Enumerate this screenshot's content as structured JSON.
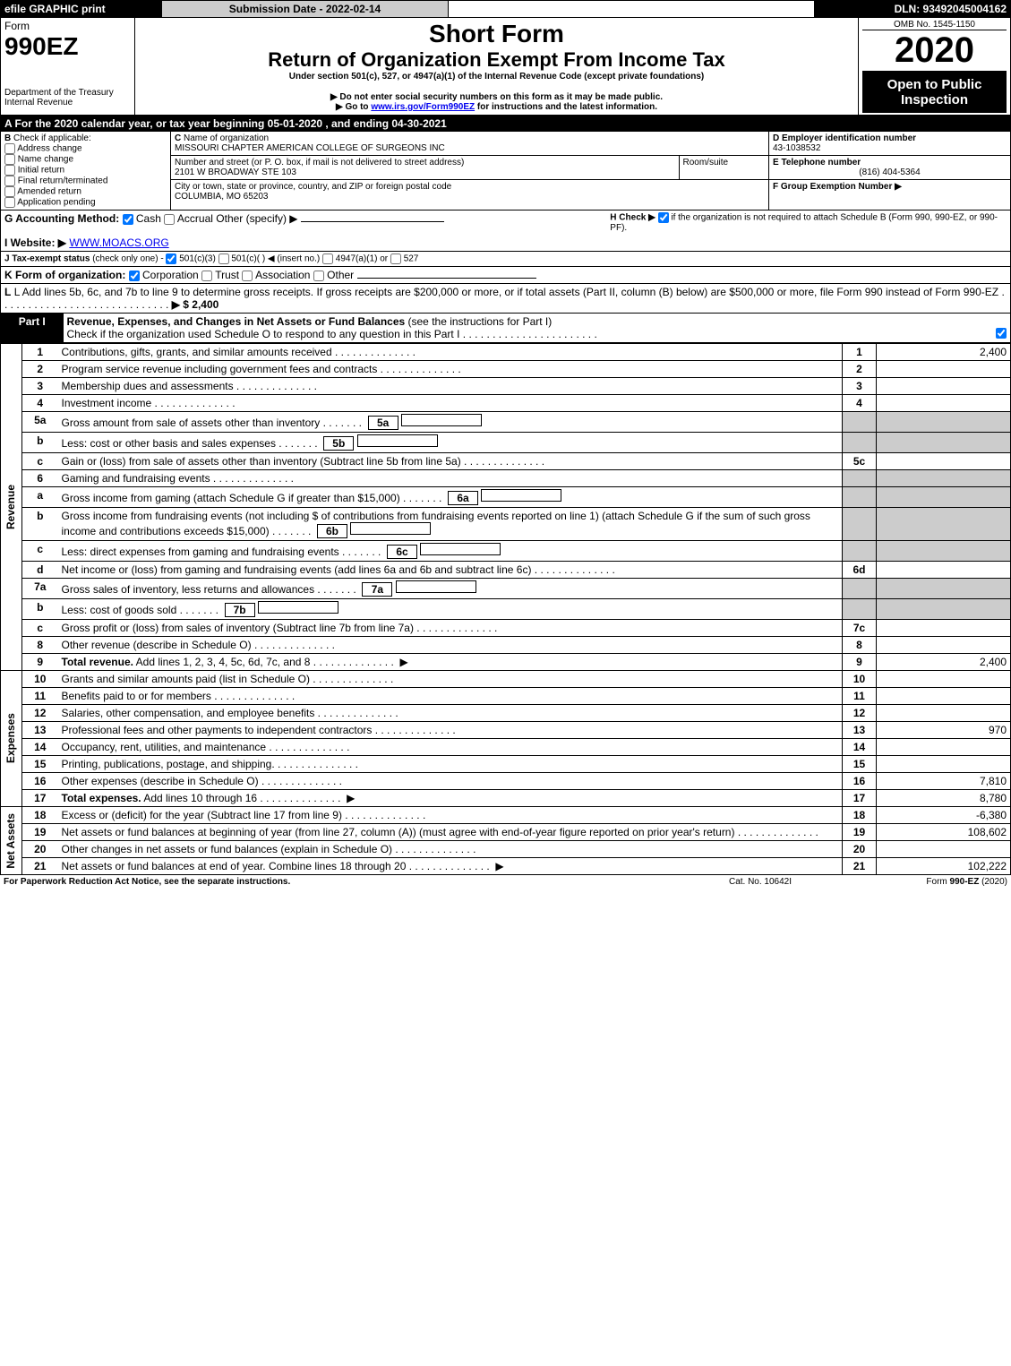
{
  "topbar": {
    "efile": "efile GRAPHIC print",
    "submission_label": "Submission Date - 2022-02-14",
    "dln": "DLN: 93492045004162"
  },
  "header": {
    "form_word": "Form",
    "form_number": "990EZ",
    "dept": "Department of the Treasury",
    "irs": "Internal Revenue",
    "short_form": "Short Form",
    "title": "Return of Organization Exempt From Income Tax",
    "subtitle": "Under section 501(c), 527, or 4947(a)(1) of the Internal Revenue Code (except private foundations)",
    "warn1": "▶ Do not enter social security numbers on this form as it may be made public.",
    "warn2_pre": "▶ Go to ",
    "warn2_link": "www.irs.gov/Form990EZ",
    "warn2_post": " for instructions and the latest information.",
    "omb": "OMB No. 1545-1150",
    "year": "2020",
    "open": "Open to Public Inspection"
  },
  "line_a": "A   For the 2020 calendar year, or tax year beginning 05-01-2020 , and ending 04-30-2021",
  "section_b": {
    "label": "B",
    "check_if": "Check if applicable:",
    "opts": [
      "Address change",
      "Name change",
      "Initial return",
      "Final return/terminated",
      "Amended return",
      "Application pending"
    ]
  },
  "section_c": {
    "c_label": "C",
    "name_label": "Name of organization",
    "name": "MISSOURI CHAPTER AMERICAN COLLEGE OF SURGEONS INC",
    "street_label": "Number and street (or P. O. box, if mail is not delivered to street address)",
    "room_label": "Room/suite",
    "street": "2101 W BROADWAY STE 103",
    "city_label": "City or town, state or province, country, and ZIP or foreign postal code",
    "city": "COLUMBIA, MO  65203"
  },
  "section_d": {
    "d_label": "D Employer identification number",
    "ein": "43-1038532",
    "e_label": "E Telephone number",
    "phone": "(816) 404-5364",
    "f_label": "F Group Exemption Number  ▶"
  },
  "line_g": {
    "label": "G Accounting Method:",
    "cash": "Cash",
    "accrual": "Accrual",
    "other": "Other (specify) ▶"
  },
  "line_h": {
    "pre": "H  Check ▶",
    "post": "if the organization is not required to attach Schedule B (Form 990, 990-EZ, or 990-PF)."
  },
  "line_i": {
    "label": "I Website: ▶",
    "url": "WWW.MOACS.ORG"
  },
  "line_j": {
    "pre": "J Tax-exempt status",
    "sub": "(check only one) -",
    "opt1": "501(c)(3)",
    "opt2": "501(c)(  ) ◀ (insert no.)",
    "opt3": "4947(a)(1) or",
    "opt4": "527"
  },
  "line_k": {
    "label": "K Form of organization:",
    "opts": [
      "Corporation",
      "Trust",
      "Association",
      "Other"
    ]
  },
  "line_l": {
    "text": "L Add lines 5b, 6c, and 7b to line 9 to determine gross receipts. If gross receipts are $200,000 or more, or if total assets (Part II, column (B) below) are $500,000 or more, file Form 990 instead of Form 990-EZ",
    "arrow": "▶ $ 2,400"
  },
  "part1": {
    "label": "Part I",
    "title": "Revenue, Expenses, and Changes in Net Assets or Fund Balances",
    "title_note": "(see the instructions for Part I)",
    "check_line": "Check if the organization used Schedule O to respond to any question in this Part I"
  },
  "sections": {
    "revenue": "Revenue",
    "expenses": "Expenses",
    "netassets": "Net Assets"
  },
  "rows": [
    {
      "n": "1",
      "t": "Contributions, gifts, grants, and similar amounts received",
      "rn": "1",
      "v": "2,400"
    },
    {
      "n": "2",
      "t": "Program service revenue including government fees and contracts",
      "rn": "2",
      "v": ""
    },
    {
      "n": "3",
      "t": "Membership dues and assessments",
      "rn": "3",
      "v": ""
    },
    {
      "n": "4",
      "t": "Investment income",
      "rn": "4",
      "v": ""
    },
    {
      "n": "5a",
      "t": "Gross amount from sale of assets other than inventory",
      "mid": "5a",
      "rn": "",
      "v": "",
      "shade": true
    },
    {
      "n": "b",
      "t": "Less: cost or other basis and sales expenses",
      "mid": "5b",
      "rn": "",
      "v": "",
      "shade": true
    },
    {
      "n": "c",
      "t": "Gain or (loss) from sale of assets other than inventory (Subtract line 5b from line 5a)",
      "rn": "5c",
      "v": ""
    },
    {
      "n": "6",
      "t": "Gaming and fundraising events",
      "rn": "",
      "v": "",
      "shade": true
    },
    {
      "n": "a",
      "t": "Gross income from gaming (attach Schedule G if greater than $15,000)",
      "mid": "6a",
      "rn": "",
      "v": "",
      "shade": true
    },
    {
      "n": "b",
      "t": "Gross income from fundraising events (not including $                   of contributions from fundraising events reported on line 1) (attach Schedule G if the sum of such gross income and contributions exceeds $15,000)",
      "mid": "6b",
      "rn": "",
      "v": "",
      "shade": true
    },
    {
      "n": "c",
      "t": "Less: direct expenses from gaming and fundraising events",
      "mid": "6c",
      "rn": "",
      "v": "",
      "shade": true
    },
    {
      "n": "d",
      "t": "Net income or (loss) from gaming and fundraising events (add lines 6a and 6b and subtract line 6c)",
      "rn": "6d",
      "v": ""
    },
    {
      "n": "7a",
      "t": "Gross sales of inventory, less returns and allowances",
      "mid": "7a",
      "rn": "",
      "v": "",
      "shade": true
    },
    {
      "n": "b",
      "t": "Less: cost of goods sold",
      "mid": "7b",
      "rn": "",
      "v": "",
      "shade": true
    },
    {
      "n": "c",
      "t": "Gross profit or (loss) from sales of inventory (Subtract line 7b from line 7a)",
      "rn": "7c",
      "v": ""
    },
    {
      "n": "8",
      "t": "Other revenue (describe in Schedule O)",
      "rn": "8",
      "v": ""
    },
    {
      "n": "9",
      "t": "Total revenue. Add lines 1, 2, 3, 4, 5c, 6d, 7c, and 8",
      "rn": "9",
      "v": "2,400",
      "bold": true,
      "arrow": true
    }
  ],
  "exp_rows": [
    {
      "n": "10",
      "t": "Grants and similar amounts paid (list in Schedule O)",
      "rn": "10",
      "v": ""
    },
    {
      "n": "11",
      "t": "Benefits paid to or for members",
      "rn": "11",
      "v": ""
    },
    {
      "n": "12",
      "t": "Salaries, other compensation, and employee benefits",
      "rn": "12",
      "v": ""
    },
    {
      "n": "13",
      "t": "Professional fees and other payments to independent contractors",
      "rn": "13",
      "v": "970"
    },
    {
      "n": "14",
      "t": "Occupancy, rent, utilities, and maintenance",
      "rn": "14",
      "v": ""
    },
    {
      "n": "15",
      "t": "Printing, publications, postage, and shipping.",
      "rn": "15",
      "v": ""
    },
    {
      "n": "16",
      "t": "Other expenses (describe in Schedule O)",
      "rn": "16",
      "v": "7,810"
    },
    {
      "n": "17",
      "t": "Total expenses. Add lines 10 through 16",
      "rn": "17",
      "v": "8,780",
      "bold": true,
      "arrow": true
    }
  ],
  "na_rows": [
    {
      "n": "18",
      "t": "Excess or (deficit) for the year (Subtract line 17 from line 9)",
      "rn": "18",
      "v": "-6,380"
    },
    {
      "n": "19",
      "t": "Net assets or fund balances at beginning of year (from line 27, column (A)) (must agree with end-of-year figure reported on prior year's return)",
      "rn": "19",
      "v": "108,602"
    },
    {
      "n": "20",
      "t": "Other changes in net assets or fund balances (explain in Schedule O)",
      "rn": "20",
      "v": ""
    },
    {
      "n": "21",
      "t": "Net assets or fund balances at end of year. Combine lines 18 through 20",
      "rn": "21",
      "v": "102,222",
      "arrow": true
    }
  ],
  "footer": {
    "left": "For Paperwork Reduction Act Notice, see the separate instructions.",
    "mid": "Cat. No. 10642I",
    "right_pre": "Form ",
    "right_form": "990-EZ",
    "right_year": " (2020)"
  }
}
